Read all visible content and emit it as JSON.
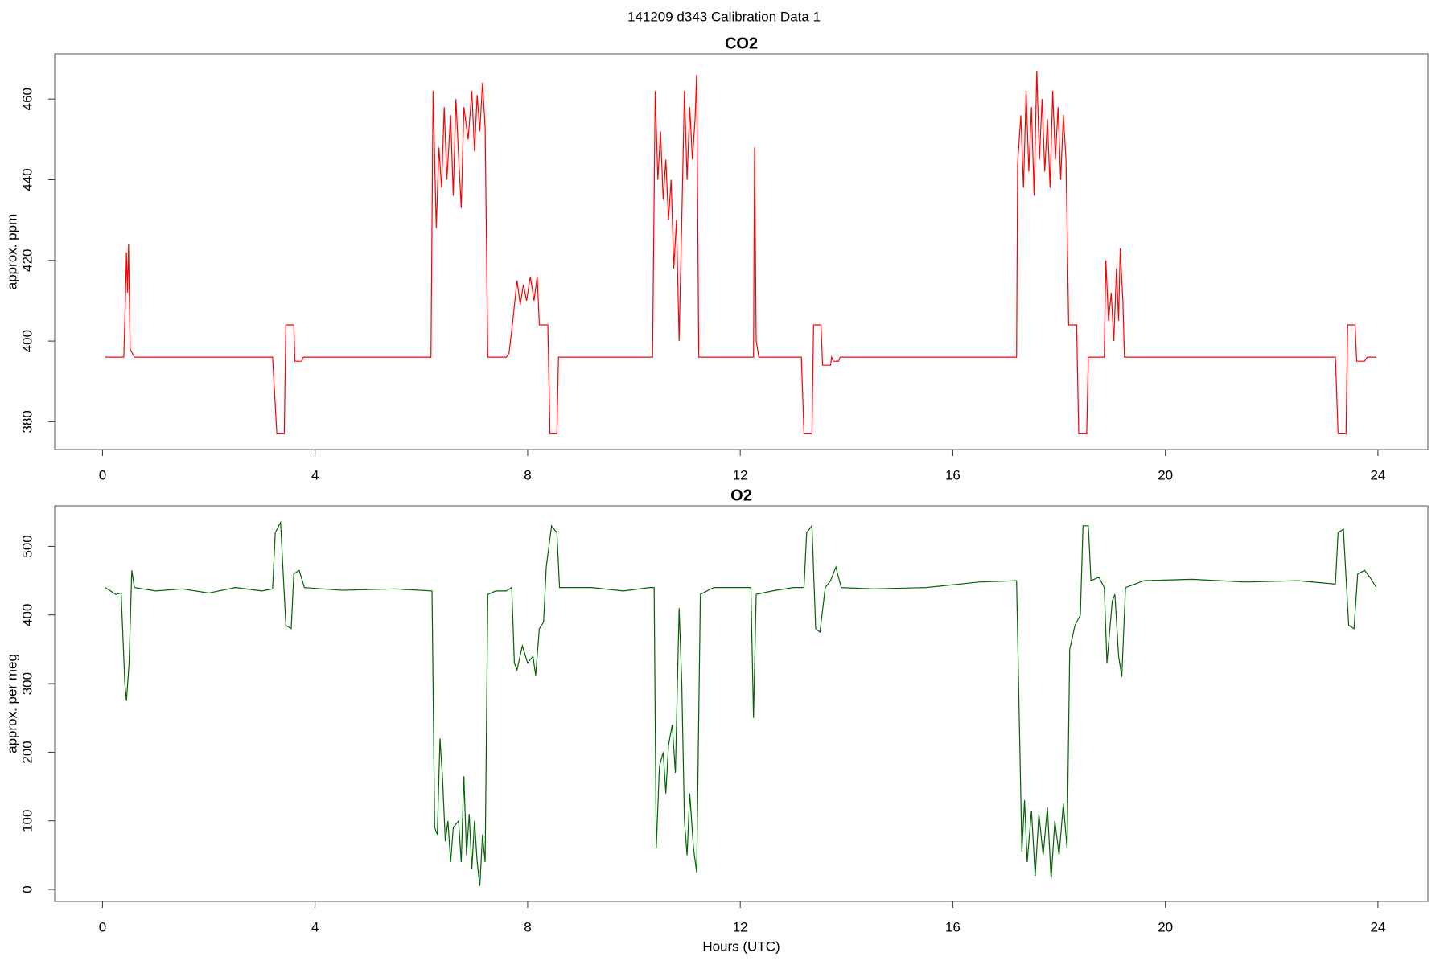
{
  "title": "141209   d343   Calibration Data 1",
  "chart_data": [
    {
      "type": "line",
      "title": "CO2",
      "ylabel": "approx. ppm",
      "color": "#ff0000",
      "xlim": [
        -0.9,
        24.94
      ],
      "xticks": [
        0,
        4,
        8,
        12,
        16,
        20,
        24
      ],
      "ylim": [
        373.1,
        471.2
      ],
      "yticks": [
        380,
        400,
        420,
        440,
        460
      ],
      "x": [
        0.05,
        0.4,
        0.43,
        0.45,
        0.47,
        0.49,
        0.52,
        0.6,
        3.2,
        3.28,
        3.42,
        3.45,
        3.6,
        3.62,
        3.75,
        3.78,
        6.18,
        6.22,
        6.28,
        6.33,
        6.38,
        6.43,
        6.48,
        6.55,
        6.6,
        6.65,
        6.7,
        6.75,
        6.8,
        6.88,
        6.95,
        7.0,
        7.05,
        7.1,
        7.15,
        7.2,
        7.25,
        7.6,
        7.65,
        7.72,
        7.8,
        7.86,
        7.92,
        7.98,
        8.05,
        8.12,
        8.18,
        8.22,
        8.38,
        8.42,
        8.55,
        8.58,
        10.35,
        10.4,
        10.45,
        10.5,
        10.55,
        10.6,
        10.65,
        10.7,
        10.75,
        10.8,
        10.85,
        10.9,
        10.95,
        11.0,
        11.05,
        11.1,
        11.15,
        11.18,
        11.22,
        12.25,
        12.27,
        12.3,
        12.35,
        13.15,
        13.2,
        13.35,
        13.38,
        13.52,
        13.55,
        13.7,
        13.72,
        13.75,
        13.85,
        13.88,
        17.2,
        17.22,
        17.28,
        17.33,
        17.38,
        17.43,
        17.48,
        17.53,
        17.58,
        17.63,
        17.68,
        17.73,
        17.78,
        17.83,
        17.88,
        17.93,
        17.98,
        18.03,
        18.08,
        18.13,
        18.18,
        18.33,
        18.37,
        18.52,
        18.55,
        18.85,
        18.88,
        18.93,
        18.98,
        19.03,
        19.08,
        19.12,
        19.15,
        19.2,
        19.23,
        23.2,
        23.25,
        23.4,
        23.43,
        23.57,
        23.6,
        23.75,
        23.8,
        23.97
      ],
      "values": [
        396,
        396,
        410,
        422,
        412,
        424,
        398,
        396,
        396,
        377,
        377,
        404,
        404,
        395,
        395,
        396,
        396,
        462,
        428,
        448,
        438,
        458,
        440,
        456,
        436,
        460,
        446,
        433,
        458,
        450,
        462,
        447,
        461,
        452,
        464,
        453,
        396,
        396,
        397,
        405,
        415,
        409,
        414,
        410,
        416,
        410,
        416,
        404,
        404,
        377,
        377,
        396,
        396,
        462,
        440,
        452,
        435,
        445,
        430,
        440,
        418,
        430,
        400,
        430,
        462,
        440,
        458,
        445,
        455,
        466,
        396,
        396,
        448,
        400,
        396,
        396,
        377,
        377,
        404,
        404,
        394,
        394,
        396,
        395,
        395,
        396,
        396,
        444,
        456,
        438,
        462,
        442,
        458,
        436,
        467,
        445,
        460,
        442,
        455,
        438,
        462,
        445,
        458,
        440,
        456,
        445,
        404,
        404,
        377,
        377,
        396,
        396,
        420,
        405,
        412,
        400,
        418,
        405,
        423,
        410,
        396,
        396,
        377,
        377,
        404,
        404,
        395,
        395,
        396,
        396
      ]
    },
    {
      "type": "line",
      "title": "O2",
      "ylabel": "approx. per meg",
      "xlabel": "Hours (UTC)",
      "color": "#006400",
      "xlim": [
        -0.9,
        24.94
      ],
      "xticks": [
        0,
        4,
        8,
        12,
        16,
        20,
        24
      ],
      "ylim": [
        -17.5,
        559.1
      ],
      "yticks": [
        0,
        100,
        200,
        300,
        400,
        500
      ],
      "x": [
        0.05,
        0.15,
        0.25,
        0.35,
        0.42,
        0.45,
        0.5,
        0.55,
        0.6,
        1,
        1.5,
        2,
        2.5,
        3.0,
        3.2,
        3.25,
        3.35,
        3.4,
        3.45,
        3.55,
        3.6,
        3.7,
        3.8,
        4.5,
        5.5,
        6.2,
        6.25,
        6.3,
        6.35,
        6.4,
        6.45,
        6.5,
        6.55,
        6.6,
        6.7,
        6.75,
        6.8,
        6.85,
        6.9,
        6.95,
        7.0,
        7.05,
        7.1,
        7.15,
        7.2,
        7.25,
        7.4,
        7.6,
        7.7,
        7.75,
        7.8,
        7.9,
        8.0,
        8.1,
        8.15,
        8.22,
        8.3,
        8.35,
        8.45,
        8.55,
        8.6,
        9.2,
        9.8,
        10.3,
        10.38,
        10.42,
        10.48,
        10.55,
        10.6,
        10.65,
        10.72,
        10.78,
        10.85,
        10.9,
        10.95,
        11.0,
        11.05,
        11.12,
        11.18,
        11.25,
        11.5,
        12.2,
        12.25,
        12.3,
        12.6,
        13.0,
        13.2,
        13.25,
        13.35,
        13.42,
        13.5,
        13.6,
        13.7,
        13.8,
        13.9,
        14.5,
        15.5,
        16.5,
        17.2,
        17.3,
        17.35,
        17.4,
        17.48,
        17.55,
        17.62,
        17.7,
        17.78,
        17.85,
        17.92,
        18.0,
        18.08,
        18.15,
        18.2,
        18.3,
        18.4,
        18.45,
        18.55,
        18.6,
        18.75,
        18.85,
        18.9,
        19.0,
        19.05,
        19.12,
        19.18,
        19.25,
        19.6,
        20.5,
        21.5,
        22.5,
        23.2,
        23.25,
        23.35,
        23.45,
        23.55,
        23.62,
        23.75,
        23.85,
        23.97
      ],
      "values": [
        440,
        435,
        430,
        432,
        300,
        275,
        330,
        465,
        440,
        435,
        438,
        432,
        440,
        435,
        438,
        520,
        535,
        460,
        385,
        380,
        460,
        465,
        440,
        436,
        438,
        435,
        90,
        80,
        220,
        160,
        70,
        100,
        40,
        90,
        100,
        40,
        165,
        50,
        110,
        30,
        100,
        40,
        5,
        80,
        40,
        430,
        435,
        435,
        440,
        330,
        320,
        355,
        330,
        340,
        312,
        380,
        390,
        470,
        530,
        520,
        440,
        440,
        435,
        440,
        440,
        60,
        180,
        200,
        140,
        210,
        240,
        170,
        410,
        300,
        100,
        50,
        140,
        60,
        25,
        430,
        440,
        440,
        250,
        430,
        435,
        440,
        440,
        520,
        530,
        380,
        375,
        440,
        450,
        470,
        440,
        438,
        440,
        448,
        450,
        55,
        130,
        40,
        115,
        20,
        110,
        50,
        120,
        15,
        100,
        50,
        125,
        60,
        350,
        385,
        400,
        530,
        530,
        450,
        455,
        440,
        330,
        420,
        430,
        340,
        310,
        440,
        450,
        452,
        448,
        450,
        445,
        520,
        525,
        385,
        380,
        460,
        465,
        455,
        440
      ]
    }
  ]
}
